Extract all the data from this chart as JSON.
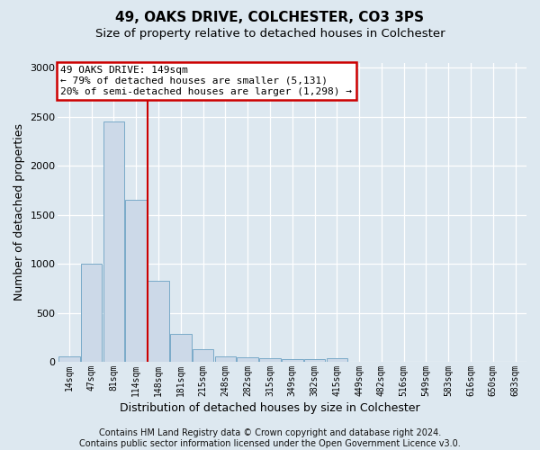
{
  "title1": "49, OAKS DRIVE, COLCHESTER, CO3 3PS",
  "title2": "Size of property relative to detached houses in Colchester",
  "xlabel": "Distribution of detached houses by size in Colchester",
  "ylabel": "Number of detached properties",
  "footnote1": "Contains HM Land Registry data © Crown copyright and database right 2024.",
  "footnote2": "Contains public sector information licensed under the Open Government Licence v3.0.",
  "bar_labels": [
    "14sqm",
    "47sqm",
    "81sqm",
    "114sqm",
    "148sqm",
    "181sqm",
    "215sqm",
    "248sqm",
    "282sqm",
    "315sqm",
    "349sqm",
    "382sqm",
    "415sqm",
    "449sqm",
    "482sqm",
    "516sqm",
    "549sqm",
    "583sqm",
    "616sqm",
    "650sqm",
    "683sqm"
  ],
  "bar_values": [
    55,
    1000,
    2450,
    1650,
    830,
    280,
    130,
    55,
    50,
    40,
    25,
    25,
    35,
    0,
    0,
    0,
    0,
    0,
    0,
    0,
    0
  ],
  "bar_color": "#ccd9e8",
  "bar_edge_color": "#7aaac8",
  "vline_x_index": 3.5,
  "annotation_line1": "49 OAKS DRIVE: 149sqm",
  "annotation_line2": "← 79% of detached houses are smaller (5,131)",
  "annotation_line3": "20% of semi-detached houses are larger (1,298) →",
  "vline_color": "#cc0000",
  "background_color": "#dde8f0",
  "ylim_max": 3050,
  "yticks": [
    0,
    500,
    1000,
    1500,
    2000,
    2500,
    3000
  ],
  "grid_color": "#ffffff",
  "title1_fontsize": 11,
  "title2_fontsize": 9.5,
  "xlabel_fontsize": 9,
  "ylabel_fontsize": 9,
  "tick_fontsize": 8,
  "xtick_fontsize": 7
}
